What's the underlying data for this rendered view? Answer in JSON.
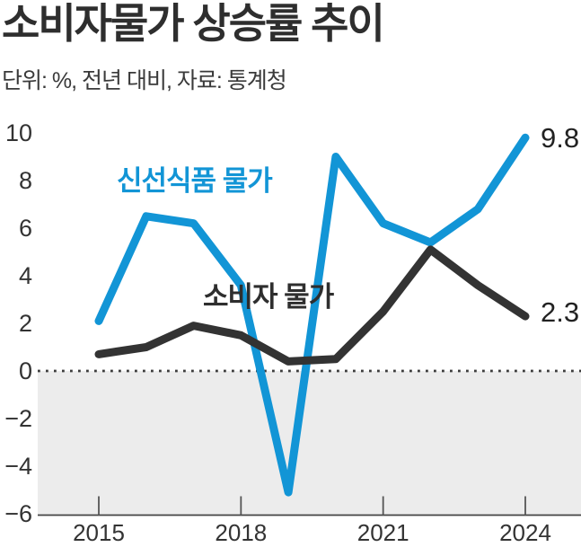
{
  "header": {
    "title": "소비자물가 상승률 추이",
    "subtitle": "단위: %, 전년 대비, 자료: 통계청"
  },
  "chart_data": {
    "type": "line",
    "title": "소비자물가 상승률 추이",
    "unit_note": "단위: %, 전년 대비",
    "source": "통계청",
    "x": [
      2015,
      2016,
      2017,
      2018,
      2019,
      2020,
      2021,
      2022,
      2023,
      2024
    ],
    "series": [
      {
        "name": "신선식품 물가",
        "color": "#1295d6",
        "values": [
          2.1,
          6.5,
          6.2,
          3.6,
          -5.1,
          9.0,
          6.2,
          5.4,
          6.8,
          9.8
        ],
        "end_label": "9.8"
      },
      {
        "name": "소비자 물가",
        "color": "#333333",
        "values": [
          0.7,
          1.0,
          1.9,
          1.5,
          0.4,
          0.5,
          2.5,
          5.1,
          3.6,
          2.3
        ],
        "end_label": "2.3"
      }
    ],
    "yticks": [
      10,
      8,
      6,
      4,
      2,
      0,
      -2,
      -4,
      -6
    ],
    "xticks": [
      2015,
      2018,
      2021,
      2024
    ],
    "ylim": [
      -6,
      10
    ],
    "xlabel": "",
    "ylabel": "",
    "grid": "zero-dotted-line-only",
    "negative_area_shaded": true,
    "legend_position": "inline-labels"
  },
  "colors": {
    "fresh_food_line": "#1295d6",
    "cpi_line": "#333333",
    "shaded_negative_area": "#ececec",
    "axis": "#444444",
    "text": "#2e2e2e"
  }
}
